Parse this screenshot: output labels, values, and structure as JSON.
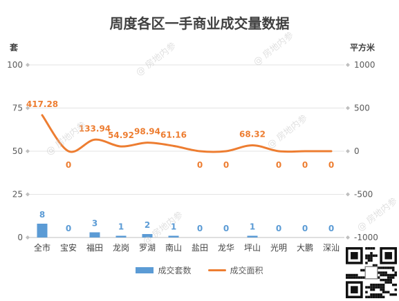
{
  "chart_data": {
    "type": "bar",
    "title": "周度各区一手商业成交量数据",
    "categories": [
      "全市",
      "宝安",
      "福田",
      "龙岗",
      "罗湖",
      "南山",
      "盐田",
      "龙华",
      "坪山",
      "光明",
      "大鹏",
      "深汕"
    ],
    "series": [
      {
        "name": "成交套数",
        "type": "bar",
        "axis": "left",
        "values": [
          8,
          0,
          3,
          1,
          2,
          1,
          0,
          0,
          1,
          0,
          0,
          0
        ],
        "color": "#5b9bd5"
      },
      {
        "name": "成交面积",
        "type": "line",
        "axis": "right",
        "values": [
          417.28,
          0,
          133.94,
          54.92,
          98.94,
          61.16,
          0,
          0,
          68.32,
          0,
          0,
          0
        ],
        "color": "#ed7d31"
      }
    ],
    "left_axis": {
      "label": "套",
      "ylim": [
        0,
        100
      ],
      "ticks": [
        0,
        25,
        50,
        75,
        100
      ]
    },
    "right_axis": {
      "label": "平方米",
      "ylim": [
        -1000,
        1000
      ],
      "ticks": [
        -1000,
        -500,
        0,
        500,
        1000
      ]
    },
    "grid": true,
    "legend_position": "bottom"
  },
  "watermark": "@ 房地内参",
  "qr_icon": "qr-code-icon"
}
